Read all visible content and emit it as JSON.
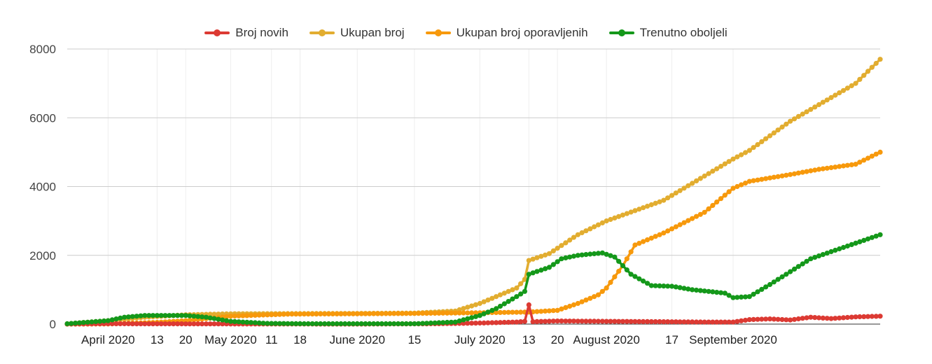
{
  "chart_data": {
    "type": "line",
    "title": "",
    "xlabel": "",
    "ylabel": "",
    "ylim": [
      0,
      8000
    ],
    "yticks": [
      "0",
      "2000",
      "4000",
      "6000",
      "8000"
    ],
    "x_range": [
      "2020-03-22",
      "2020-10-07"
    ],
    "xticks": [
      {
        "date": "2020-04-01",
        "label": "April 2020"
      },
      {
        "date": "2020-04-13",
        "label": "13"
      },
      {
        "date": "2020-04-20",
        "label": "20"
      },
      {
        "date": "2020-05-01",
        "label": "May 2020"
      },
      {
        "date": "2020-05-11",
        "label": "11"
      },
      {
        "date": "2020-05-18",
        "label": "18"
      },
      {
        "date": "2020-06-01",
        "label": "June 2020"
      },
      {
        "date": "2020-06-15",
        "label": "15"
      },
      {
        "date": "2020-07-01",
        "label": "July 2020"
      },
      {
        "date": "2020-07-13",
        "label": "13"
      },
      {
        "date": "2020-07-20",
        "label": "20"
      },
      {
        "date": "2020-08-01",
        "label": "August 2020"
      },
      {
        "date": "2020-08-17",
        "label": "17"
      },
      {
        "date": "2020-09-01",
        "label": "September 2020"
      }
    ],
    "grid": true,
    "legend_position": "top",
    "series": [
      {
        "name": "Broj novih",
        "color": "#dc3a33",
        "points": [
          [
            "2020-03-22",
            3
          ],
          [
            "2020-04-01",
            10
          ],
          [
            "2020-04-15",
            8
          ],
          [
            "2020-05-01",
            5
          ],
          [
            "2020-06-01",
            2
          ],
          [
            "2020-06-20",
            10
          ],
          [
            "2020-07-01",
            30
          ],
          [
            "2020-07-10",
            60
          ],
          [
            "2020-07-12",
            80
          ],
          [
            "2020-07-13",
            560
          ],
          [
            "2020-07-14",
            70
          ],
          [
            "2020-07-20",
            90
          ],
          [
            "2020-08-01",
            80
          ],
          [
            "2020-08-15",
            70
          ],
          [
            "2020-08-25",
            60
          ],
          [
            "2020-09-01",
            60
          ],
          [
            "2020-09-05",
            130
          ],
          [
            "2020-09-10",
            150
          ],
          [
            "2020-09-15",
            120
          ],
          [
            "2020-09-20",
            200
          ],
          [
            "2020-09-25",
            160
          ],
          [
            "2020-10-01",
            210
          ],
          [
            "2020-10-07",
            230
          ]
        ]
      },
      {
        "name": "Ukupan broj",
        "color": "#e2ad30",
        "points": [
          [
            "2020-03-22",
            10
          ],
          [
            "2020-04-01",
            100
          ],
          [
            "2020-04-10",
            200
          ],
          [
            "2020-04-20",
            270
          ],
          [
            "2020-05-01",
            300
          ],
          [
            "2020-06-01",
            310
          ],
          [
            "2020-06-15",
            320
          ],
          [
            "2020-06-25",
            380
          ],
          [
            "2020-07-01",
            600
          ],
          [
            "2020-07-05",
            800
          ],
          [
            "2020-07-10",
            1050
          ],
          [
            "2020-07-12",
            1300
          ],
          [
            "2020-07-13",
            1850
          ],
          [
            "2020-07-18",
            2050
          ],
          [
            "2020-07-25",
            2600
          ],
          [
            "2020-08-01",
            3000
          ],
          [
            "2020-08-15",
            3600
          ],
          [
            "2020-09-01",
            4800
          ],
          [
            "2020-09-05",
            5050
          ],
          [
            "2020-09-15",
            5900
          ],
          [
            "2020-10-01",
            7000
          ],
          [
            "2020-10-07",
            7700
          ]
        ]
      },
      {
        "name": "Ukupan broj oporavljenih",
        "color": "#f7990c",
        "points": [
          [
            "2020-03-22",
            0
          ],
          [
            "2020-04-01",
            5
          ],
          [
            "2020-04-13",
            50
          ],
          [
            "2020-04-20",
            100
          ],
          [
            "2020-05-01",
            230
          ],
          [
            "2020-05-15",
            290
          ],
          [
            "2020-06-01",
            300
          ],
          [
            "2020-06-15",
            310
          ],
          [
            "2020-07-01",
            330
          ],
          [
            "2020-07-13",
            350
          ],
          [
            "2020-07-20",
            400
          ],
          [
            "2020-07-25",
            600
          ],
          [
            "2020-07-30",
            850
          ],
          [
            "2020-08-01",
            1050
          ],
          [
            "2020-08-05",
            1700
          ],
          [
            "2020-08-08",
            2300
          ],
          [
            "2020-08-15",
            2650
          ],
          [
            "2020-08-25",
            3250
          ],
          [
            "2020-09-01",
            3950
          ],
          [
            "2020-09-05",
            4150
          ],
          [
            "2020-09-15",
            4350
          ],
          [
            "2020-09-22",
            4500
          ],
          [
            "2020-10-01",
            4650
          ],
          [
            "2020-10-07",
            5000
          ]
        ]
      },
      {
        "name": "Trenutno oboljeli",
        "color": "#14981a",
        "points": [
          [
            "2020-03-22",
            10
          ],
          [
            "2020-04-01",
            100
          ],
          [
            "2020-04-05",
            200
          ],
          [
            "2020-04-10",
            250
          ],
          [
            "2020-04-20",
            250
          ],
          [
            "2020-04-25",
            200
          ],
          [
            "2020-05-01",
            80
          ],
          [
            "2020-05-10",
            20
          ],
          [
            "2020-05-20",
            10
          ],
          [
            "2020-06-15",
            10
          ],
          [
            "2020-06-25",
            60
          ],
          [
            "2020-07-01",
            250
          ],
          [
            "2020-07-05",
            450
          ],
          [
            "2020-07-10",
            800
          ],
          [
            "2020-07-12",
            950
          ],
          [
            "2020-07-13",
            1450
          ],
          [
            "2020-07-18",
            1650
          ],
          [
            "2020-07-21",
            1900
          ],
          [
            "2020-07-25",
            2000
          ],
          [
            "2020-07-31",
            2070
          ],
          [
            "2020-08-03",
            1950
          ],
          [
            "2020-08-07",
            1450
          ],
          [
            "2020-08-12",
            1120
          ],
          [
            "2020-08-17",
            1100
          ],
          [
            "2020-08-22",
            1000
          ],
          [
            "2020-08-30",
            900
          ],
          [
            "2020-09-01",
            770
          ],
          [
            "2020-09-05",
            800
          ],
          [
            "2020-09-10",
            1150
          ],
          [
            "2020-09-20",
            1900
          ],
          [
            "2020-10-07",
            2600
          ]
        ]
      }
    ]
  }
}
